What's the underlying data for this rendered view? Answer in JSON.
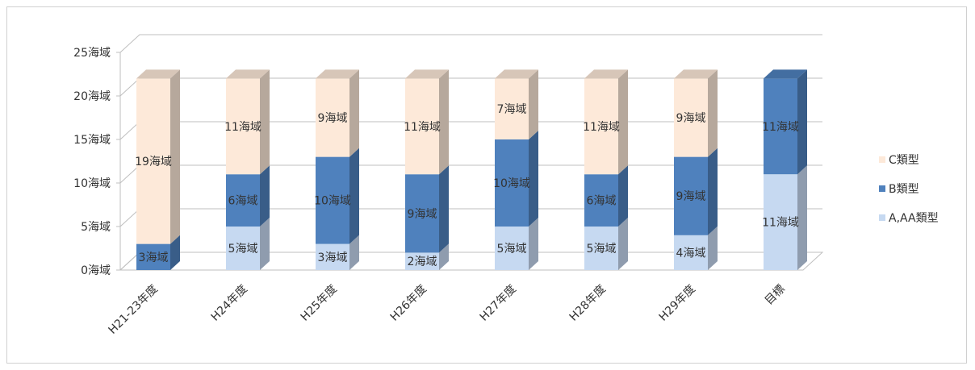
{
  "chart_data": {
    "type": "bar",
    "stacked": true,
    "three_d": true,
    "categories": [
      "H21-23年度",
      "H24年度",
      "H25年度",
      "H26年度",
      "H27年度",
      "H28年度",
      "H29年度",
      "目標"
    ],
    "series": [
      {
        "name": "A,AA類型",
        "color": "#c6d9f1",
        "values": [
          0,
          5,
          3,
          2,
          5,
          5,
          4,
          11
        ],
        "labels": [
          "",
          "5海域",
          "3海域",
          "2海域",
          "5海域",
          "5海域",
          "4海域",
          "11海域"
        ]
      },
      {
        "name": "B類型",
        "color": "#4f81bd",
        "values": [
          3,
          6,
          10,
          9,
          10,
          6,
          9,
          11
        ],
        "labels": [
          "3海域",
          "6海域",
          "10海域",
          "9海域",
          "10海域",
          "6海域",
          "9海域",
          "11海域"
        ]
      },
      {
        "name": "C類型",
        "color": "#fde9d9",
        "values": [
          19,
          11,
          9,
          11,
          7,
          11,
          9,
          0
        ],
        "labels": [
          "19海域",
          "11海域",
          "9海域",
          "11海域",
          "7海域",
          "11海域",
          "9海域",
          ""
        ]
      }
    ],
    "y_ticks": [
      "0海域",
      "5海域",
      "10海域",
      "15海域",
      "20海域",
      "25海域"
    ],
    "ylim": [
      0,
      25
    ],
    "grid": true,
    "legend_position": "right",
    "legend_order": [
      "C類型",
      "B類型",
      "A,AA類型"
    ],
    "title": "",
    "xlabel": "",
    "ylabel": ""
  }
}
